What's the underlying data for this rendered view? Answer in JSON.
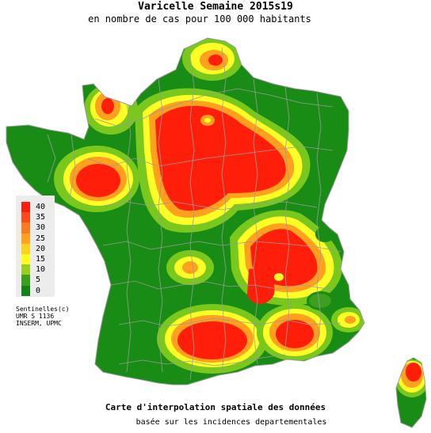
{
  "title": "Varicelle Semaine 2015s19",
  "subtitle": "en nombre de cas pour 100 000 habitants",
  "legend": {
    "levels": [
      {
        "label": "40",
        "color": "#ff1a0a"
      },
      {
        "label": "35",
        "color": "#ff4b1a"
      },
      {
        "label": "30",
        "color": "#ff7a1e"
      },
      {
        "label": "25",
        "color": "#ffa21e"
      },
      {
        "label": "20",
        "color": "#ffd21e"
      },
      {
        "label": "15",
        "color": "#ffff1e"
      },
      {
        "label": "10",
        "color": "#9acd1e"
      },
      {
        "label": "5",
        "color": "#3ca01e"
      },
      {
        "label": "0",
        "color": "#148214"
      }
    ]
  },
  "credits": {
    "line1": "Sentinelles(c)",
    "line2": "UMR S 1136",
    "line3": "INSERM, UPMC"
  },
  "footer": {
    "line1": "Carte d'interpolation spatiale des données",
    "line2": "basée sur les incidences departementales"
  },
  "colors": {
    "base": "#188c14",
    "mid": "#7ac81e",
    "yellow": "#ffff28",
    "orange": "#ffa01e",
    "red": "#ff1e0a",
    "border": "#9a9a9a"
  }
}
